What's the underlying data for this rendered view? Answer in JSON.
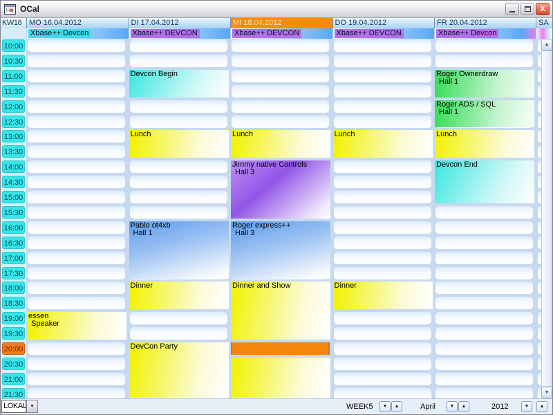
{
  "window": {
    "title": "OCal"
  },
  "titlebar": {
    "minimize_glyph": "",
    "maximize_glyph": "",
    "close_glyph": "X"
  },
  "header": {
    "week_label": "KW16",
    "sa_label": "SA",
    "days": [
      {
        "id": "mo",
        "label": "MO 16.04.2012",
        "highlight": false
      },
      {
        "id": "di",
        "label": "DI 17.04.2012",
        "highlight": false
      },
      {
        "id": "mi",
        "label": "MI 18.04.2012",
        "highlight": true
      },
      {
        "id": "do",
        "label": "DO 19.04.2012",
        "highlight": false
      },
      {
        "id": "fr",
        "label": "FR 20.04.2012",
        "highlight": false
      }
    ]
  },
  "allday": [
    {
      "day": "mo",
      "label": "Xbase++ Devcon",
      "label_bg": "#3EDBE8",
      "pink_edge": false
    },
    {
      "day": "di",
      "label": "Xbase++ DEVCON",
      "label_bg": "#B46FEA",
      "pink_edge": false
    },
    {
      "day": "mi",
      "label": "Xbase++ DEVCON",
      "label_bg": "#B46FEA",
      "pink_edge": false
    },
    {
      "day": "do",
      "label": "Xbase++ DEVCON",
      "label_bg": "#B46FEA",
      "pink_edge": false
    },
    {
      "day": "fr",
      "label": "Xbase++ Devcon",
      "label_bg": "#B46FEA",
      "pink_edge": true
    }
  ],
  "times": {
    "slots": [
      "10:00",
      "10:30",
      "11:00",
      "11:30",
      "12:00",
      "12:30",
      "13:00",
      "13:30",
      "14:00",
      "14:30",
      "15:00",
      "15:30",
      "16:00",
      "16:30",
      "17:00",
      "17:30",
      "18:00",
      "18:30",
      "19:00",
      "19:30",
      "20:00",
      "20:30",
      "21:00",
      "21:30"
    ],
    "highlighted": "20:00"
  },
  "events": [
    {
      "day": "mo",
      "title": "essen",
      "subtitle": "Speaker",
      "start": "19:00",
      "end": "20:00",
      "color": "yellow"
    },
    {
      "day": "di",
      "title": "Devcon Begin",
      "subtitle": "",
      "start": "11:00",
      "end": "12:00",
      "color": "cyan"
    },
    {
      "day": "di",
      "title": "Lunch",
      "subtitle": "",
      "start": "13:00",
      "end": "14:00",
      "color": "yellow"
    },
    {
      "day": "di",
      "title": "Pablo ot4xb",
      "subtitle": "Hall 1",
      "start": "16:00",
      "end": "18:00",
      "color": "blue"
    },
    {
      "day": "di",
      "title": "Dinner",
      "subtitle": "",
      "start": "18:00",
      "end": "19:00",
      "color": "yellow"
    },
    {
      "day": "di",
      "title": "DevCon Party",
      "subtitle": "",
      "start": "20:00",
      "end": "22:00",
      "color": "yellow"
    },
    {
      "day": "mi",
      "title": "Lunch",
      "subtitle": "",
      "start": "13:00",
      "end": "14:00",
      "color": "yellow"
    },
    {
      "day": "mi",
      "title": "Jimmy native Controls",
      "subtitle": "Hall 3",
      "start": "14:00",
      "end": "16:00",
      "color": "purple"
    },
    {
      "day": "mi",
      "title": "Roger express++",
      "subtitle": "Hall 3",
      "start": "16:00",
      "end": "18:00",
      "color": "blue"
    },
    {
      "day": "mi",
      "title": "Dinner and Show",
      "subtitle": "",
      "start": "18:00",
      "end": "20:00",
      "color": "yellow"
    },
    {
      "day": "mi",
      "title": "",
      "subtitle": "",
      "start": "20:30",
      "end": "22:00",
      "color": "yellow"
    },
    {
      "day": "do",
      "title": "Lunch",
      "subtitle": "",
      "start": "13:00",
      "end": "14:00",
      "color": "yellow"
    },
    {
      "day": "do",
      "title": "Dinner",
      "subtitle": "",
      "start": "18:00",
      "end": "19:00",
      "color": "yellow"
    },
    {
      "day": "fr",
      "title": "Roger Ownerdraw",
      "subtitle": "Hall 1",
      "start": "11:00",
      "end": "12:00",
      "color": "green"
    },
    {
      "day": "fr",
      "title": "Roger ADS / SQL",
      "subtitle": "Hall 1",
      "start": "12:00",
      "end": "13:00",
      "color": "green"
    },
    {
      "day": "fr",
      "title": "Lunch",
      "subtitle": "",
      "start": "13:00",
      "end": "14:00",
      "color": "yellow"
    },
    {
      "day": "fr",
      "title": "Devcon End",
      "subtitle": "",
      "start": "14:00",
      "end": "15:30",
      "color": "cyan"
    }
  ],
  "selection": {
    "day": "mi",
    "time": "20:00"
  },
  "footer": {
    "calendar_label": "LOKAL",
    "week_label": "WEEK5",
    "month_label": "April",
    "year_label": "2012"
  },
  "colors": {
    "header_highlight": "#FF8C00",
    "selection_orange": "#F6850C",
    "time_highlight": "#EE7D1F",
    "event_yellow": "#F2F20A",
    "event_cyan": "#38E6E0",
    "event_blue": "#5B9BEE",
    "event_purple": "#9256E8",
    "event_green": "#3EDE5E",
    "allday_cyan_label": "#3EDBE8",
    "allday_purple_label": "#B46FEA",
    "time_cell_cyan": "#38E4E6"
  }
}
